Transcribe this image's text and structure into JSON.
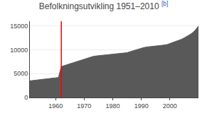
{
  "chart_data": {
    "type": "area",
    "title": "Befolkningsutvikling 1951–2010",
    "annotations": [
      {
        "text": "[b]",
        "color": "#3355bb"
      }
    ],
    "x": [
      1951,
      1952,
      1953,
      1954,
      1955,
      1956,
      1957,
      1958,
      1959,
      1960,
      1961,
      1962,
      1963,
      1964,
      1965,
      1966,
      1967,
      1968,
      1969,
      1970,
      1971,
      1972,
      1973,
      1974,
      1975,
      1976,
      1977,
      1978,
      1979,
      1980,
      1981,
      1982,
      1983,
      1984,
      1985,
      1986,
      1987,
      1988,
      1989,
      1990,
      1991,
      1992,
      1993,
      1994,
      1995,
      1996,
      1997,
      1998,
      1999,
      2000,
      2001,
      2002,
      2003,
      2004,
      2005,
      2006,
      2007,
      2008,
      2009,
      2010
    ],
    "values": [
      3500,
      3550,
      3620,
      3700,
      3780,
      3850,
      3920,
      3990,
      4050,
      4100,
      4200,
      6500,
      6700,
      6900,
      7100,
      7300,
      7500,
      7700,
      7900,
      8100,
      8300,
      8500,
      8600,
      8700,
      8800,
      8850,
      8900,
      8950,
      9000,
      9050,
      9100,
      9150,
      9200,
      9280,
      9400,
      9600,
      9800,
      10000,
      10200,
      10400,
      10500,
      10600,
      10650,
      10700,
      10750,
      10800,
      10900,
      11000,
      11100,
      11300,
      11600,
      11800,
      12000,
      12200,
      12500,
      12800,
      13200,
      13600,
      14200,
      15000
    ],
    "color": "#595959",
    "vlines": [
      {
        "x": 1962,
        "color": "#ff0000"
      }
    ],
    "xlim": [
      1951,
      2010
    ],
    "xticks": [
      1960,
      1970,
      1980,
      1990,
      2000
    ],
    "ylim": [
      0,
      16000
    ],
    "yticks": [
      0,
      5000,
      10000,
      15000
    ],
    "grid": true
  }
}
